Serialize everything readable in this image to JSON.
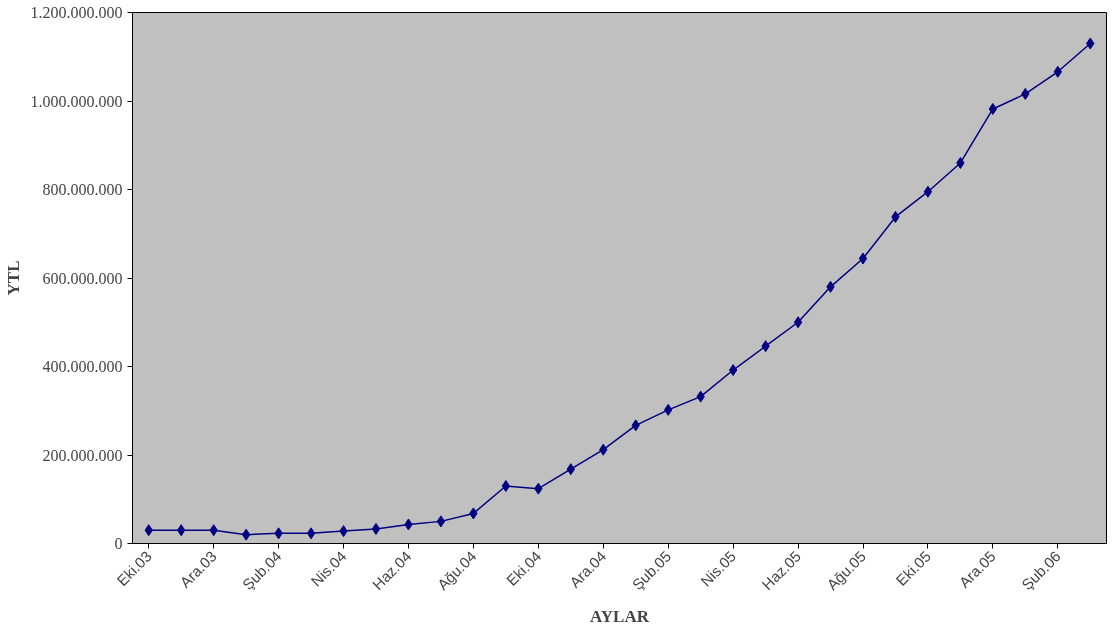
{
  "chart_data": {
    "type": "line",
    "xlabel": "AYLAR",
    "ylabel": "YTL",
    "categories": [
      "Eki.03",
      null,
      "Ara.03",
      null,
      "Şub.04",
      null,
      "Nis.04",
      null,
      "Haz.04",
      null,
      "Ağu.04",
      null,
      "Eki.04",
      null,
      "Ara.04",
      null,
      "Şub.05",
      null,
      "Nis.05",
      null,
      "Haz.05",
      null,
      "Ağu.05",
      null,
      "Eki.05",
      null,
      "Ara.05",
      null,
      "Şub.06",
      null
    ],
    "series": [
      {
        "color": "#000080",
        "values": [
          30000000,
          30000000,
          30000000,
          20000000,
          23000000,
          23000000,
          28000000,
          33000000,
          43000000,
          50000000,
          68000000,
          130000000,
          124000000,
          168000000,
          212000000,
          267000000,
          302000000,
          332000000,
          392000000,
          446000000,
          500000000,
          580000000,
          644000000,
          738000000,
          795000000,
          860000000,
          982000000,
          1016000000,
          1066000000,
          1130000000
        ]
      }
    ],
    "ylim": [
      0,
      1200000000
    ],
    "yticks": [
      {
        "value": 0,
        "label": "0"
      },
      {
        "value": 200000000,
        "label": "200.000.000"
      },
      {
        "value": 400000000,
        "label": "400.000.000"
      },
      {
        "value": 600000000,
        "label": "600.000.000"
      },
      {
        "value": 800000000,
        "label": "800.000.000"
      },
      {
        "value": 1000000000,
        "label": "1.000.000.000"
      },
      {
        "value": 1200000000,
        "label": "1.200.000.000"
      }
    ],
    "grid": false,
    "marker": "diamond",
    "line_style": "solid"
  }
}
